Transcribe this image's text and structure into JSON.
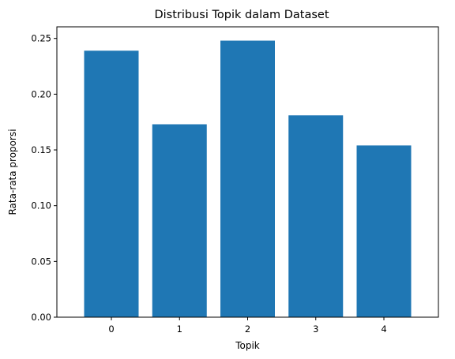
{
  "chart_data": {
    "type": "bar",
    "title": "Distribusi Topik dalam Dataset",
    "xlabel": "Topik",
    "ylabel": "Rata-rata proporsi",
    "categories": [
      "0",
      "1",
      "2",
      "3",
      "4"
    ],
    "values": [
      0.239,
      0.173,
      0.248,
      0.181,
      0.154
    ],
    "ylim": [
      0,
      0.2604
    ],
    "yticks": [
      "0.00",
      "0.05",
      "0.10",
      "0.15",
      "0.20",
      "0.25"
    ],
    "ytick_values": [
      0,
      0.05,
      0.1,
      0.15,
      0.2,
      0.25
    ],
    "bar_color": "#1f77b4",
    "grid": false,
    "legend": "none"
  }
}
